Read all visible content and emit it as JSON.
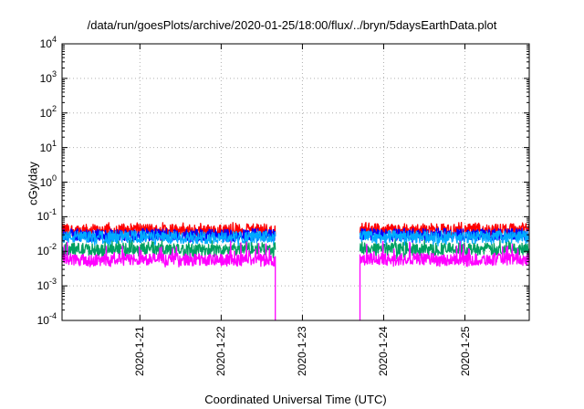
{
  "chart_data": {
    "type": "line",
    "title": "/data/run/goesPlots/archive/2020-01-25/18:00/flux/../bryn/5daysEarthData.plot",
    "xlabel": "Coordinated Universal Time (UTC)",
    "ylabel": "cGy/day",
    "yscale": "log",
    "ylim": [
      0.0001,
      10000
    ],
    "xlim": [
      "2020-01-20T01:00",
      "2020-01-25T19:00"
    ],
    "yticks": [
      {
        "base": "10",
        "exp": "-4",
        "value": 0.0001
      },
      {
        "base": "10",
        "exp": "-3",
        "value": 0.001
      },
      {
        "base": "10",
        "exp": "-2",
        "value": 0.01
      },
      {
        "base": "10",
        "exp": "-1",
        "value": 0.1
      },
      {
        "base": "10",
        "exp": "0",
        "value": 1
      },
      {
        "base": "10",
        "exp": "1",
        "value": 10
      },
      {
        "base": "10",
        "exp": "2",
        "value": 100
      },
      {
        "base": "10",
        "exp": "3",
        "value": 1000
      },
      {
        "base": "10",
        "exp": "4",
        "value": 10000
      }
    ],
    "xticks": [
      {
        "label": "2020-1-21",
        "value": "2020-01-21T00:00"
      },
      {
        "label": "2020-1-22",
        "value": "2020-01-22T00:00"
      },
      {
        "label": "2020-1-23",
        "value": "2020-01-23T00:00"
      },
      {
        "label": "2020-1-24",
        "value": "2020-01-24T00:00"
      },
      {
        "label": "2020-1-25",
        "value": "2020-01-25T00:00"
      }
    ],
    "grid": true,
    "data_gaps": [
      [
        "2020-01-22T16:00",
        "2020-01-23T17:00"
      ]
    ],
    "series": [
      {
        "color": "#ff0000",
        "x": [
          "2020-01-20T01:00",
          "2020-01-20T12:00",
          "2020-01-21T00:00",
          "2020-01-21T12:00",
          "2020-01-22T00:00",
          "2020-01-22T12:00",
          "2020-01-22T16:00",
          "2020-01-23T17:00",
          "2020-01-24T00:00",
          "2020-01-24T12:00",
          "2020-01-25T00:00",
          "2020-01-25T12:00",
          "2020-01-25T19:00"
        ],
        "values": [
          0.042,
          0.04,
          0.043,
          0.041,
          0.04,
          0.042,
          0.04,
          0.045,
          0.042,
          0.043,
          0.041,
          0.042,
          0.045
        ],
        "min": 0.025,
        "max": 0.07
      },
      {
        "color": "#0000ff",
        "x": [
          "2020-01-20T01:00",
          "2020-01-20T12:00",
          "2020-01-21T00:00",
          "2020-01-21T12:00",
          "2020-01-22T00:00",
          "2020-01-22T12:00",
          "2020-01-22T16:00",
          "2020-01-23T17:00",
          "2020-01-24T00:00",
          "2020-01-24T12:00",
          "2020-01-25T00:00",
          "2020-01-25T12:00",
          "2020-01-25T19:00"
        ],
        "values": [
          0.03,
          0.029,
          0.03,
          0.03,
          0.029,
          0.03,
          0.029,
          0.032,
          0.03,
          0.031,
          0.03,
          0.03,
          0.031
        ],
        "min": 0.018,
        "max": 0.045
      },
      {
        "color": "#00aaff",
        "x": [
          "2020-01-20T01:00",
          "2020-01-20T12:00",
          "2020-01-21T00:00",
          "2020-01-21T12:00",
          "2020-01-22T00:00",
          "2020-01-22T12:00",
          "2020-01-22T16:00",
          "2020-01-23T17:00",
          "2020-01-24T00:00",
          "2020-01-24T12:00",
          "2020-01-25T00:00",
          "2020-01-25T12:00",
          "2020-01-25T19:00"
        ],
        "values": [
          0.026,
          0.025,
          0.026,
          0.025,
          0.025,
          0.026,
          0.025,
          0.027,
          0.026,
          0.026,
          0.025,
          0.026,
          0.026
        ],
        "min": 0.014,
        "max": 0.04
      },
      {
        "color": "#00a060",
        "x": [
          "2020-01-20T01:00",
          "2020-01-20T12:00",
          "2020-01-21T00:00",
          "2020-01-21T12:00",
          "2020-01-22T00:00",
          "2020-01-22T12:00",
          "2020-01-22T16:00",
          "2020-01-23T17:00",
          "2020-01-24T00:00",
          "2020-01-24T12:00",
          "2020-01-25T00:00",
          "2020-01-25T12:00",
          "2020-01-25T19:00"
        ],
        "values": [
          0.012,
          0.011,
          0.012,
          0.011,
          0.011,
          0.012,
          0.011,
          0.012,
          0.012,
          0.011,
          0.012,
          0.011,
          0.012
        ],
        "min": 0.006,
        "max": 0.022
      },
      {
        "color": "#ff00ff",
        "x": [
          "2020-01-20T01:00",
          "2020-01-20T12:00",
          "2020-01-21T00:00",
          "2020-01-21T12:00",
          "2020-01-22T00:00",
          "2020-01-22T12:00",
          "2020-01-22T16:00",
          "2020-01-23T17:00",
          "2020-01-24T00:00",
          "2020-01-24T12:00",
          "2020-01-25T00:00",
          "2020-01-25T12:00",
          "2020-01-25T19:00"
        ],
        "values": [
          0.006,
          0.0055,
          0.006,
          0.0058,
          0.0055,
          0.006,
          0.0055,
          0.006,
          0.0058,
          0.006,
          0.0056,
          0.006,
          0.0058
        ],
        "min": 0.0035,
        "max": 0.02
      }
    ]
  }
}
